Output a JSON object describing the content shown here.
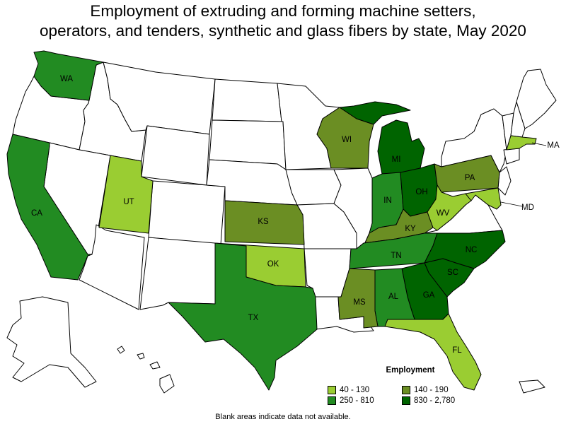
{
  "title_line1": "Employment of extruding and forming machine setters,",
  "title_line2": "operators, and tenders, synthetic and glass fibers by state, May 2020",
  "legend": {
    "title": "Employment",
    "items": [
      {
        "label": "40 - 130",
        "color": "#9acd32"
      },
      {
        "label": "140 - 190",
        "color": "#6b8e23"
      },
      {
        "label": "250 - 810",
        "color": "#228b22"
      },
      {
        "label": "830 - 2,780",
        "color": "#006400"
      }
    ]
  },
  "footnote": "Blank areas indicate data not available.",
  "colors": {
    "none": "#ffffff",
    "c1": "#9acd32",
    "c2": "#6b8e23",
    "c3": "#228b22",
    "c4": "#006400"
  },
  "states": [
    {
      "abbr": "WA",
      "range": "250 - 810"
    },
    {
      "abbr": "CA",
      "range": "250 - 810"
    },
    {
      "abbr": "UT",
      "range": "40 - 130"
    },
    {
      "abbr": "KS",
      "range": "140 - 190"
    },
    {
      "abbr": "OK",
      "range": "40 - 130"
    },
    {
      "abbr": "TX",
      "range": "250 - 810"
    },
    {
      "abbr": "WI",
      "range": "140 - 190"
    },
    {
      "abbr": "MI",
      "range": "830 - 2,780"
    },
    {
      "abbr": "IN",
      "range": "250 - 810"
    },
    {
      "abbr": "OH",
      "range": "830 - 2,780"
    },
    {
      "abbr": "PA",
      "range": "140 - 190"
    },
    {
      "abbr": "KY",
      "range": "140 - 190"
    },
    {
      "abbr": "WV",
      "range": "40 - 130"
    },
    {
      "abbr": "TN",
      "range": "250 - 810"
    },
    {
      "abbr": "NC",
      "range": "830 - 2,780"
    },
    {
      "abbr": "SC",
      "range": "830 - 2,780"
    },
    {
      "abbr": "GA",
      "range": "830 - 2,780"
    },
    {
      "abbr": "AL",
      "range": "250 - 810"
    },
    {
      "abbr": "MS",
      "range": "140 - 190"
    },
    {
      "abbr": "FL",
      "range": "40 - 130"
    },
    {
      "abbr": "MD",
      "range": "40 - 130"
    },
    {
      "abbr": "MA",
      "range": "40 - 130"
    }
  ]
}
